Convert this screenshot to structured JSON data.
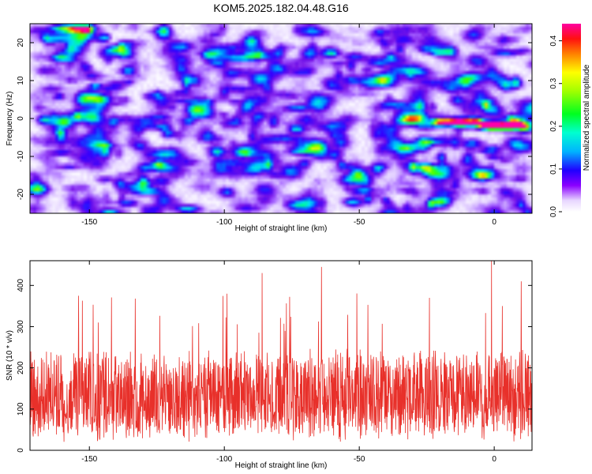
{
  "title": "KOM5.2025.182.04.48.G16",
  "chart_data": [
    {
      "type": "heatmap",
      "xlabel": "Height of straight line (km)",
      "ylabel": "Frequency (Hz)",
      "xlim": [
        -172,
        14
      ],
      "ylim": [
        -25,
        25
      ],
      "x_ticks": [
        -150,
        -100,
        -50,
        0
      ],
      "y_ticks": [
        -20,
        -10,
        0,
        10,
        20
      ],
      "x_tick_labels": [
        "-150",
        "-100",
        "-50",
        "0"
      ],
      "y_tick_labels": [
        "-20",
        "-10",
        "0",
        "10",
        "20"
      ],
      "colorbar": {
        "label": "Normalized spectral amplitude",
        "range": [
          0.0,
          0.44
        ],
        "ticks": [
          0.0,
          0.1,
          0.2,
          0.3,
          0.4
        ],
        "tick_labels": [
          "0.0",
          "0.1",
          "0.2",
          "0.3",
          "0.4"
        ],
        "colormap": [
          "#ffffff",
          "#8a00ff",
          "#0000ff",
          "#00ffff",
          "#00ff00",
          "#ffff00",
          "#ff8000",
          "#ff0000",
          "#ff00a0"
        ]
      },
      "peak": {
        "x": -1,
        "y": -1.5,
        "value": 0.44
      },
      "background_level": 0.05,
      "notes": "noise field with a bright horizontal streak near 0 Hz from about -20 km to 10 km"
    },
    {
      "type": "line",
      "xlabel": "Height of straight line (km)",
      "ylabel": "SNR (10 * v/v)",
      "xlim": [
        -172,
        14
      ],
      "ylim": [
        0,
        460
      ],
      "x_ticks": [
        -150,
        -100,
        -50,
        0
      ],
      "y_ticks": [
        0,
        100,
        200,
        300,
        400
      ],
      "x_tick_labels": [
        "-150",
        "-100",
        "-50",
        "0"
      ],
      "y_tick_labels": [
        "0",
        "100",
        "200",
        "300",
        "400"
      ],
      "series": [
        {
          "color": "#e8302a",
          "x_range": [
            -172,
            14
          ],
          "x_spacing_km": 0.1,
          "mean": 130,
          "spread": 60,
          "peaks": [
            {
              "x": -154,
              "y": 375
            },
            {
              "x": -133,
              "y": 368
            },
            {
              "x": -99,
              "y": 380
            },
            {
              "x": -86,
              "y": 430
            },
            {
              "x": -64,
              "y": 445
            },
            {
              "x": -24,
              "y": 370
            },
            {
              "x": -1,
              "y": 460
            },
            {
              "x": 10,
              "y": 410
            }
          ]
        }
      ]
    }
  ]
}
